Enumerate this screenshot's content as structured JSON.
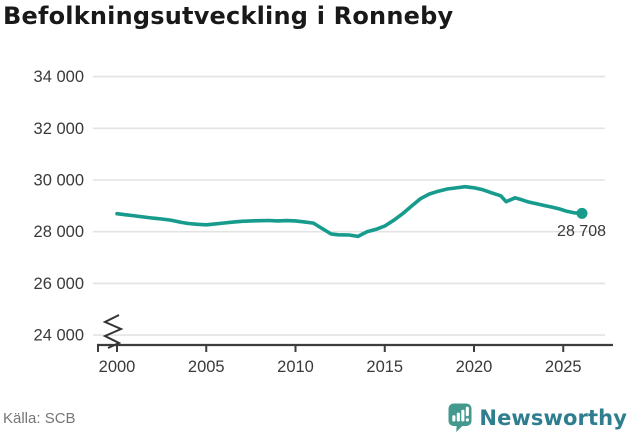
{
  "title": "Befolkningsutveckling i Ronneby",
  "source": {
    "label": "Källa: SCB"
  },
  "branding": {
    "name": "Newsworthy",
    "icon": "newsworthy-chart-bubble-icon"
  },
  "colors": {
    "line": "#169b8d",
    "grid": "#e3e3e3",
    "axis": "#3d3d3d",
    "tick_text": "#3a3a3a",
    "title_text": "#191919",
    "annotation_text": "#1c1c1c",
    "source_text": "#767676",
    "brand_text": "#2e7e8f",
    "brand_icon": "#44998f"
  },
  "chart_data": {
    "type": "line",
    "title": "Befolkningsutveckling i Ronneby",
    "source": "Källa: SCB",
    "xlabel": "",
    "ylabel": "",
    "grid": "horizontal-only",
    "legend": "none",
    "y_axis_break": true,
    "xlim": [
      1999.2,
      2027.2
    ],
    "ylim": [
      24000,
      34400
    ],
    "x_ticks": {
      "values": [
        2000,
        2005,
        2010,
        2015,
        2020,
        2025
      ],
      "labels": [
        "2000",
        "2005",
        "2010",
        "2015",
        "2020",
        "2025"
      ]
    },
    "y_ticks": {
      "values": [
        24000,
        26000,
        28000,
        30000,
        32000,
        34000
      ],
      "labels": [
        "24 000",
        "26 000",
        "28 000",
        "30 000",
        "32 000",
        "34 000"
      ]
    },
    "series": [
      {
        "name": "befolkning",
        "last_point_label": "28 708",
        "points": [
          [
            2000.0,
            28698
          ],
          [
            2000.5,
            28655
          ],
          [
            2001.0,
            28611
          ],
          [
            2001.5,
            28568
          ],
          [
            2002.0,
            28526
          ],
          [
            2002.5,
            28490
          ],
          [
            2003.0,
            28450
          ],
          [
            2003.6,
            28360
          ],
          [
            2004.0,
            28319
          ],
          [
            2004.5,
            28285
          ],
          [
            2005.0,
            28266
          ],
          [
            2005.5,
            28300
          ],
          [
            2006.0,
            28336
          ],
          [
            2006.5,
            28370
          ],
          [
            2007.0,
            28402
          ],
          [
            2007.5,
            28418
          ],
          [
            2008.0,
            28426
          ],
          [
            2008.5,
            28432
          ],
          [
            2009.0,
            28416
          ],
          [
            2009.5,
            28428
          ],
          [
            2010.0,
            28416
          ],
          [
            2010.5,
            28380
          ],
          [
            2011.0,
            28334
          ],
          [
            2011.5,
            28120
          ],
          [
            2012.0,
            27910
          ],
          [
            2012.4,
            27880
          ],
          [
            2013.0,
            27871
          ],
          [
            2013.5,
            27820
          ],
          [
            2014.0,
            27998
          ],
          [
            2014.5,
            28090
          ],
          [
            2015.0,
            28221
          ],
          [
            2015.5,
            28440
          ],
          [
            2016.0,
            28697
          ],
          [
            2016.5,
            28990
          ],
          [
            2017.0,
            29277
          ],
          [
            2017.5,
            29460
          ],
          [
            2018.0,
            29568
          ],
          [
            2018.5,
            29650
          ],
          [
            2019.0,
            29695
          ],
          [
            2019.5,
            29740
          ],
          [
            2020.0,
            29700
          ],
          [
            2020.5,
            29620
          ],
          [
            2021.0,
            29500
          ],
          [
            2021.5,
            29390
          ],
          [
            2021.8,
            29160
          ],
          [
            2022.3,
            29310
          ],
          [
            2022.7,
            29230
          ],
          [
            2023.0,
            29160
          ],
          [
            2023.5,
            29080
          ],
          [
            2024.0,
            29000
          ],
          [
            2024.3,
            28960
          ],
          [
            2024.8,
            28880
          ],
          [
            2025.2,
            28790
          ],
          [
            2025.6,
            28730
          ],
          [
            2026.05,
            28708
          ]
        ]
      }
    ]
  }
}
